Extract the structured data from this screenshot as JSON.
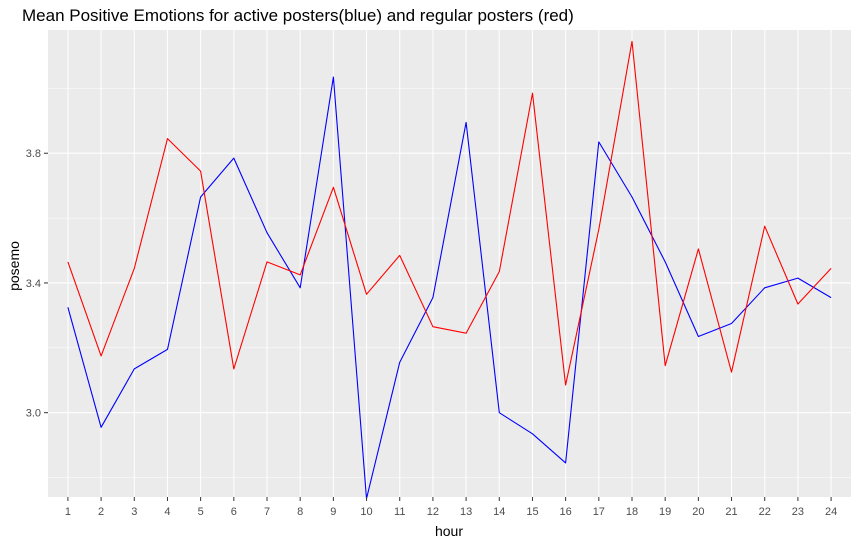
{
  "chart_data": {
    "type": "line",
    "title": "Mean Positive Emotions for active posters(blue) and regular posters (red)",
    "xlabel": "hour",
    "ylabel": "posemo",
    "categories": [
      "1",
      "2",
      "3",
      "4",
      "5",
      "6",
      "7",
      "8",
      "9",
      "10",
      "11",
      "12",
      "13",
      "14",
      "15",
      "16",
      "17",
      "18",
      "19",
      "20",
      "21",
      "22",
      "23",
      "24"
    ],
    "yticks": [
      "3.0",
      "3.4",
      "3.8"
    ],
    "ylim": [
      2.74,
      4.18
    ],
    "grid": true,
    "legend": "none",
    "series": [
      {
        "color": "#0000ff",
        "values": [
          3.325,
          2.955,
          3.135,
          3.195,
          3.665,
          3.785,
          3.555,
          3.385,
          4.035,
          2.735,
          3.155,
          3.355,
          3.895,
          3.0,
          2.935,
          2.845,
          3.835,
          3.665,
          3.465,
          3.235,
          3.275,
          3.385,
          3.415,
          3.355
        ]
      },
      {
        "color": "#ff0000",
        "values": [
          3.465,
          3.175,
          3.445,
          3.845,
          3.745,
          3.135,
          3.465,
          3.425,
          3.695,
          3.365,
          3.485,
          3.265,
          3.245,
          3.435,
          3.985,
          3.085,
          3.565,
          4.145,
          3.145,
          3.505,
          3.125,
          3.575,
          3.335,
          3.445
        ]
      }
    ]
  }
}
